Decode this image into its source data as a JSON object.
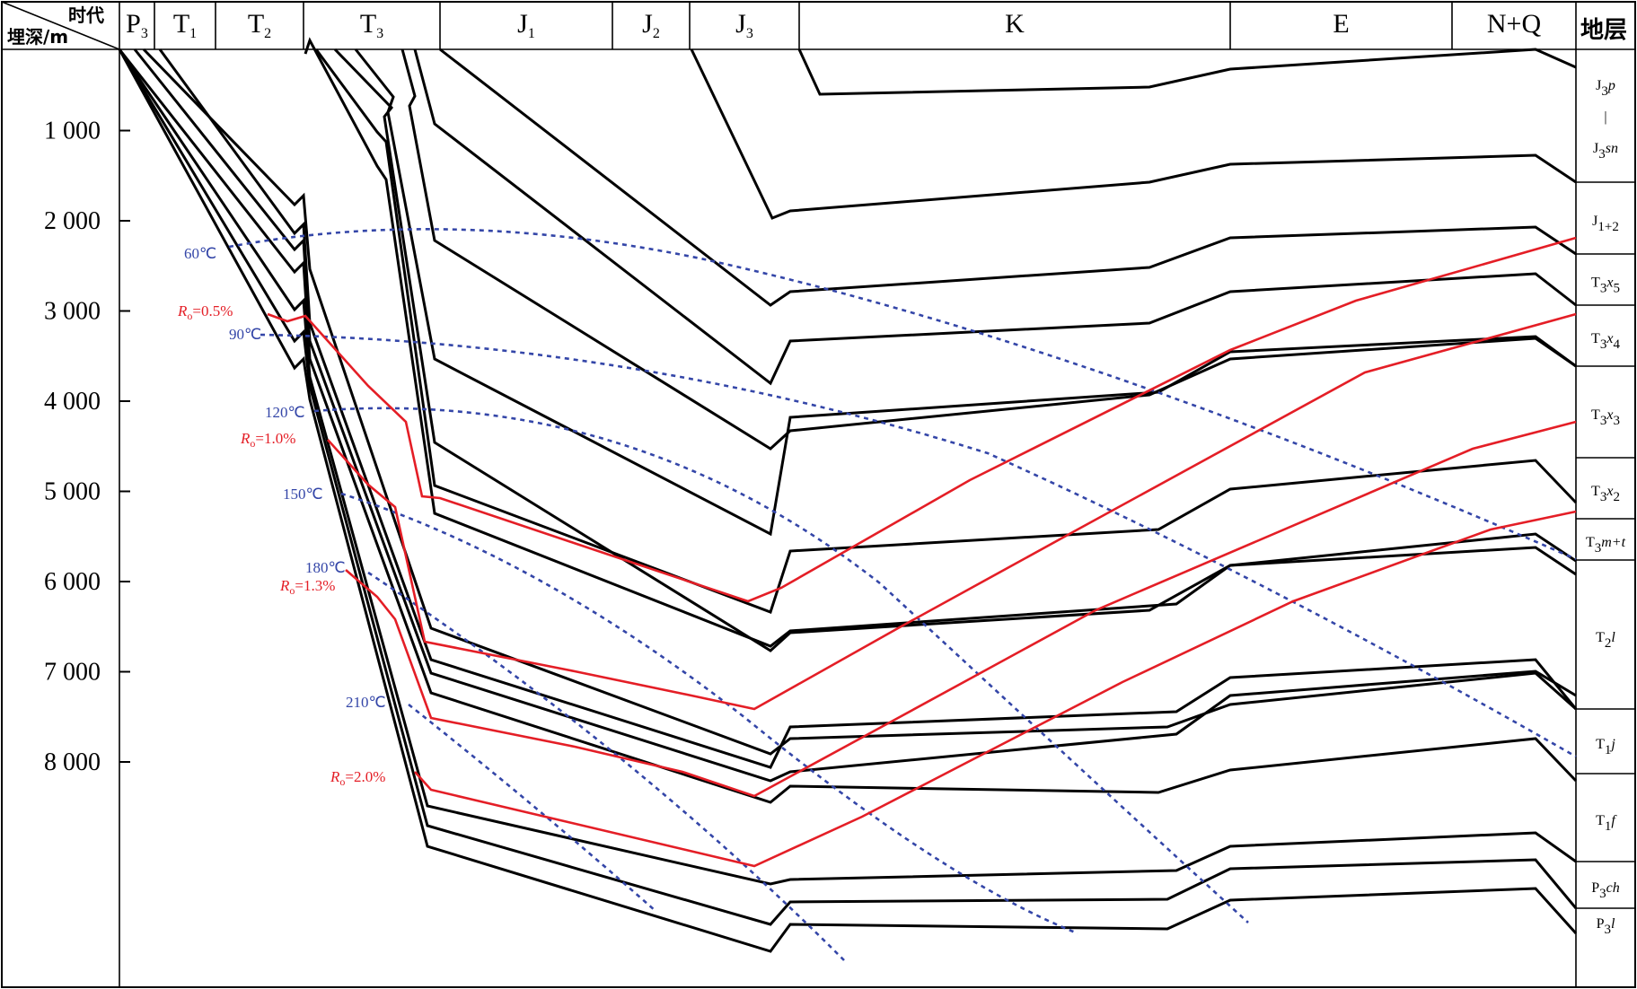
{
  "chart_data": {
    "type": "line",
    "corner": {
      "top_label": "时代",
      "bottom_label": "埋深/m"
    },
    "strata_header": "地层",
    "periods": [
      {
        "label": "P",
        "sub": "3"
      },
      {
        "label": "T",
        "sub": "1"
      },
      {
        "label": "T",
        "sub": "2"
      },
      {
        "label": "T",
        "sub": "3"
      },
      {
        "label": "J",
        "sub": "1"
      },
      {
        "label": "J",
        "sub": "2"
      },
      {
        "label": "J",
        "sub": "3"
      },
      {
        "label": "K",
        "sub": ""
      },
      {
        "label": "E",
        "sub": ""
      },
      {
        "label": "N+Q",
        "sub": ""
      }
    ],
    "y_ticks": [
      "1 000",
      "2 000",
      "3 000",
      "4 000",
      "5 000",
      "6 000",
      "7 000",
      "8 000"
    ],
    "y_tick_values": [
      1000,
      2000,
      3000,
      4000,
      5000,
      6000,
      7000,
      8000
    ],
    "ylim": [
      0,
      9000
    ],
    "strata": [
      {
        "label": "J3p | J3sn",
        "base": "J",
        "sub": "3",
        "italic": "p",
        "base2": "J",
        "sub2": "3",
        "italic2": "sn"
      },
      {
        "label": "J1+2",
        "base": "J",
        "sub": "1+2",
        "italic": ""
      },
      {
        "label": "T3x5",
        "base": "T",
        "sub": "3",
        "italic": "x",
        "sub_after": "5"
      },
      {
        "label": "T3x4",
        "base": "T",
        "sub": "3",
        "italic": "x",
        "sub_after": "4"
      },
      {
        "label": "T3x3",
        "base": "T",
        "sub": "3",
        "italic": "x",
        "sub_after": "3"
      },
      {
        "label": "T3x2",
        "base": "T",
        "sub": "3",
        "italic": "x",
        "sub_after": "2"
      },
      {
        "label": "T3m+t",
        "base": "T",
        "sub": "3",
        "italic": "m+t",
        "sub_after": ""
      },
      {
        "label": "T2l",
        "base": "T",
        "sub": "2",
        "italic": "l",
        "sub_after": ""
      },
      {
        "label": "T1j",
        "base": "T",
        "sub": "1",
        "italic": "j",
        "sub_after": ""
      },
      {
        "label": "T1f",
        "base": "T",
        "sub": "1",
        "italic": "f",
        "sub_after": ""
      },
      {
        "label": "P3ch",
        "base": "P",
        "sub": "3",
        "italic": "ch",
        "sub_after": ""
      },
      {
        "label": "P3l",
        "base": "P",
        "sub": "3",
        "italic": "l",
        "sub_after": ""
      }
    ],
    "temperature_labels": [
      "60℃",
      "90℃",
      "120℃",
      "150℃",
      "180℃",
      "210℃"
    ],
    "maturity_labels": [
      {
        "prefix": "R",
        "sub": "o",
        "value": "=0.5%"
      },
      {
        "prefix": "R",
        "sub": "o",
        "value": "=1.0%"
      },
      {
        "prefix": "R",
        "sub": "o",
        "value": "=1.3%"
      },
      {
        "prefix": "R",
        "sub": "o",
        "value": "=2.0%"
      }
    ],
    "series_styles": {
      "burial": "#000000",
      "maturity": "#e41e26",
      "temperature": "#3446a8"
    }
  }
}
